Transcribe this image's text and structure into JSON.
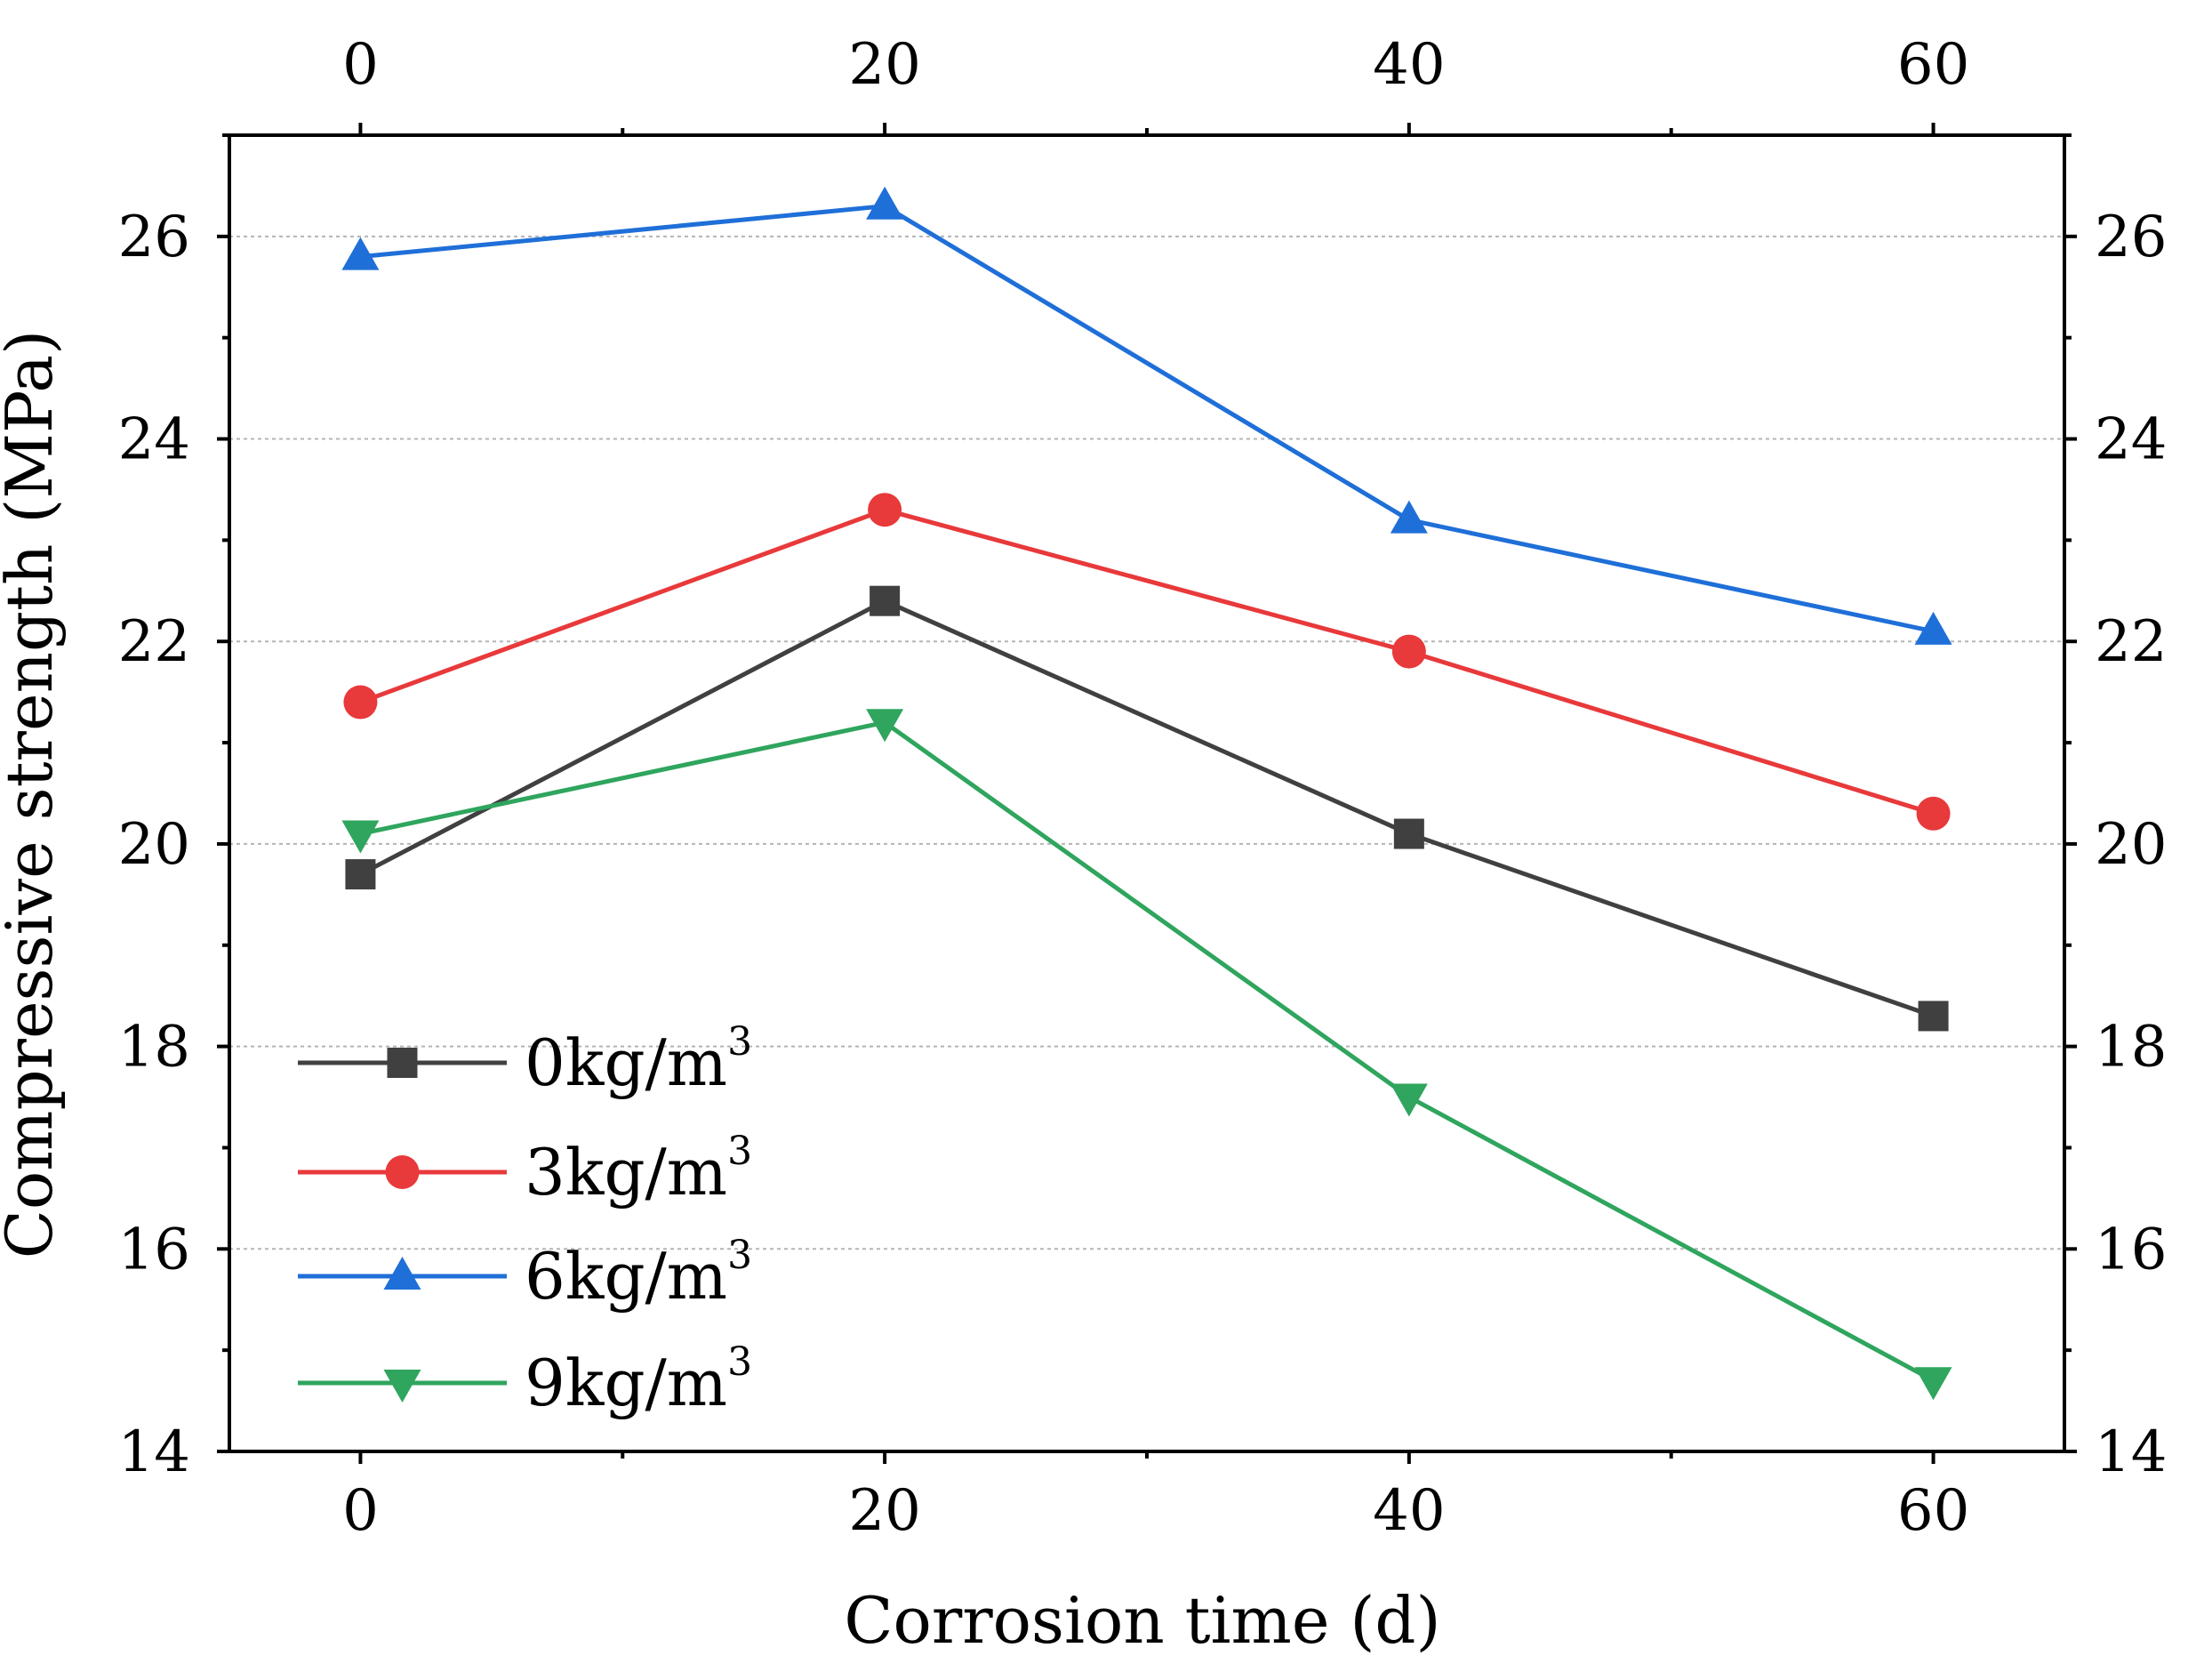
{
  "chart_data": {
    "type": "line",
    "title": "",
    "xlabel": "Corrosion time (d)",
    "ylabel": "Compressive strength (MPa)",
    "x": [
      0,
      20,
      40,
      60
    ],
    "xlim": [
      -5,
      65
    ],
    "ylim": [
      14,
      27
    ],
    "xticks": [
      0,
      20,
      40,
      60
    ],
    "xtick_labels": [
      "0",
      "20",
      "40",
      "60"
    ],
    "yticks": [
      14,
      16,
      18,
      20,
      22,
      24,
      26
    ],
    "ytick_labels": [
      "14",
      "16",
      "18",
      "20",
      "22",
      "24",
      "26"
    ],
    "grid": "horizontal dotted",
    "legend_position": "bottom-left",
    "series": [
      {
        "name": "0kg/m",
        "unit_sup": "3",
        "color": "#404040",
        "marker": "square",
        "values": [
          19.7,
          22.4,
          20.1,
          18.3
        ]
      },
      {
        "name": "3kg/m",
        "unit_sup": "3",
        "color": "#e8393b",
        "marker": "circle",
        "values": [
          21.4,
          23.3,
          21.9,
          20.3
        ]
      },
      {
        "name": "6kg/m",
        "unit_sup": "3",
        "color": "#1f6fd8",
        "marker": "triangle-up",
        "values": [
          25.8,
          26.3,
          23.2,
          22.1
        ]
      },
      {
        "name": "9kg/m",
        "unit_sup": "3",
        "color": "#2fa55e",
        "marker": "triangle-down",
        "values": [
          20.1,
          21.2,
          17.5,
          14.7
        ]
      }
    ]
  }
}
